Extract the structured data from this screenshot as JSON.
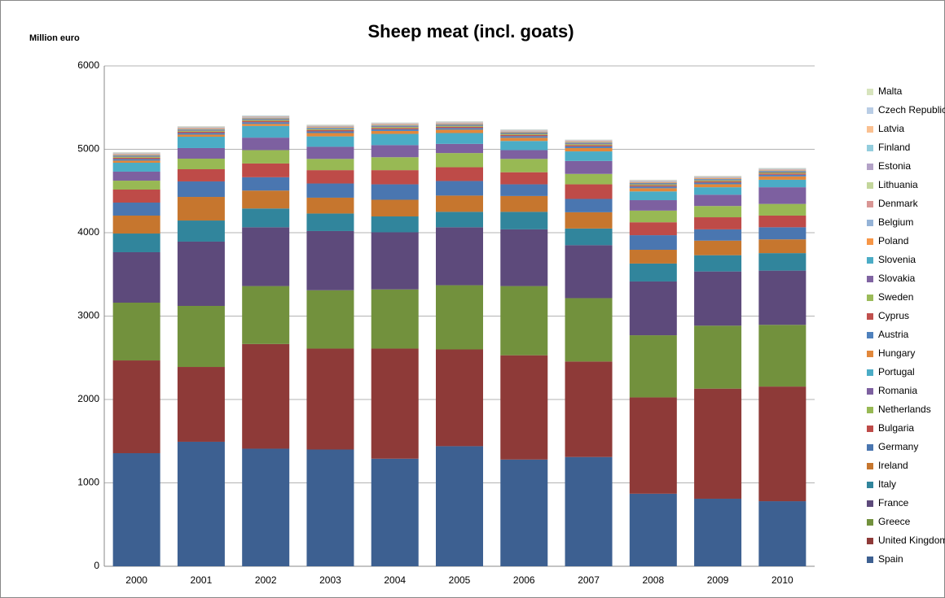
{
  "chart_data": {
    "type": "stacked-bar",
    "title": "Sheep meat (incl. goats)",
    "y_label": "Million euro",
    "categories": [
      "2000",
      "2001",
      "2002",
      "2003",
      "2004",
      "2005",
      "2006",
      "2007",
      "2008",
      "2009",
      "2010"
    ],
    "ylim": [
      0,
      6000
    ],
    "yticks": [
      0,
      1000,
      2000,
      3000,
      4000,
      5000,
      6000
    ],
    "grid": true,
    "series": [
      {
        "name": "Spain",
        "color": "#3D6091",
        "values": [
          1356,
          1493,
          1410,
          1400,
          1290,
          1440,
          1280,
          1310,
          870,
          810,
          780
        ]
      },
      {
        "name": "United Kingdom",
        "color": "#8E3A38",
        "values": [
          1112,
          897,
          1255,
          1210,
          1320,
          1160,
          1250,
          1145,
          1155,
          1320,
          1375
        ]
      },
      {
        "name": "Greece",
        "color": "#72913D",
        "values": [
          693,
          732,
          695,
          700,
          710,
          770,
          830,
          760,
          745,
          755,
          740
        ]
      },
      {
        "name": "France",
        "color": "#5D4A7B",
        "values": [
          605,
          771,
          705,
          710,
          685,
          695,
          680,
          635,
          645,
          650,
          650
        ]
      },
      {
        "name": "Italy",
        "color": "#31859C",
        "values": [
          224,
          253,
          225,
          210,
          190,
          185,
          210,
          200,
          215,
          195,
          210
        ]
      },
      {
        "name": "Ireland",
        "color": "#C6762E",
        "values": [
          215,
          283,
          215,
          190,
          200,
          195,
          190,
          195,
          165,
          175,
          165
        ]
      },
      {
        "name": "Germany",
        "color": "#4A76B0",
        "values": [
          156,
          186,
          160,
          170,
          185,
          175,
          140,
          160,
          175,
          135,
          145
        ]
      },
      {
        "name": "Bulgaria",
        "color": "#BE4B48",
        "values": [
          156,
          146,
          165,
          160,
          170,
          165,
          145,
          175,
          155,
          145,
          140
        ]
      },
      {
        "name": "Netherlands",
        "color": "#98B954",
        "values": [
          107,
          127,
          160,
          135,
          155,
          170,
          160,
          125,
          140,
          135,
          140
        ]
      },
      {
        "name": "Romania",
        "color": "#7D60A0",
        "values": [
          108,
          127,
          150,
          145,
          145,
          110,
          105,
          155,
          125,
          135,
          200
        ]
      },
      {
        "name": "Portugal",
        "color": "#4BACC6",
        "values": [
          107,
          136,
          140,
          125,
          135,
          130,
          110,
          115,
          105,
          90,
          90
        ]
      },
      {
        "name": "Hungary",
        "color": "#E2883B",
        "values": [
          25,
          25,
          25,
          40,
          35,
          40,
          38,
          40,
          38,
          36,
          40
        ]
      },
      {
        "name": "Austria",
        "color": "#4F81BD",
        "values": [
          20,
          20,
          20,
          20,
          20,
          20,
          20,
          20,
          20,
          20,
          20
        ]
      },
      {
        "name": "Cyprus",
        "color": "#C0504D",
        "values": [
          15,
          15,
          15,
          15,
          15,
          15,
          15,
          15,
          15,
          15,
          15
        ]
      },
      {
        "name": "Sweden",
        "color": "#9BBB59",
        "values": [
          12,
          12,
          12,
          12,
          12,
          12,
          12,
          12,
          12,
          12,
          12
        ]
      },
      {
        "name": "Slovakia",
        "color": "#8064A2",
        "values": [
          10,
          10,
          10,
          10,
          10,
          10,
          10,
          10,
          10,
          10,
          10
        ]
      },
      {
        "name": "Slovenia",
        "color": "#4BACC6",
        "values": [
          8,
          8,
          8,
          8,
          8,
          8,
          8,
          8,
          8,
          8,
          8
        ]
      },
      {
        "name": "Poland",
        "color": "#F79646",
        "values": [
          8,
          8,
          8,
          8,
          8,
          8,
          8,
          8,
          8,
          8,
          8
        ]
      },
      {
        "name": "Belgium",
        "color": "#95B3D7",
        "values": [
          6,
          6,
          6,
          6,
          6,
          6,
          6,
          6,
          6,
          6,
          6
        ]
      },
      {
        "name": "Denmark",
        "color": "#D99694",
        "values": [
          6,
          6,
          6,
          6,
          6,
          6,
          6,
          6,
          6,
          6,
          6
        ]
      },
      {
        "name": "Lithuania",
        "color": "#C3D69B",
        "values": [
          4,
          4,
          4,
          4,
          4,
          4,
          4,
          4,
          4,
          4,
          4
        ]
      },
      {
        "name": "Estonia",
        "color": "#B3A2C7",
        "values": [
          3,
          3,
          3,
          3,
          3,
          3,
          3,
          3,
          3,
          3,
          3
        ]
      },
      {
        "name": "Finland",
        "color": "#93CDDD",
        "values": [
          3,
          3,
          3,
          3,
          3,
          3,
          3,
          3,
          3,
          3,
          3
        ]
      },
      {
        "name": "Latvia",
        "color": "#FAC090",
        "values": [
          2,
          2,
          2,
          2,
          2,
          2,
          2,
          2,
          2,
          2,
          2
        ]
      },
      {
        "name": "Czech Republic",
        "color": "#B9CDE5",
        "values": [
          3,
          3,
          3,
          3,
          3,
          3,
          3,
          3,
          3,
          3,
          3
        ]
      },
      {
        "name": "Malta",
        "color": "#D7E4BD",
        "values": [
          2,
          2,
          2,
          2,
          2,
          2,
          2,
          2,
          2,
          2,
          2
        ]
      }
    ]
  }
}
